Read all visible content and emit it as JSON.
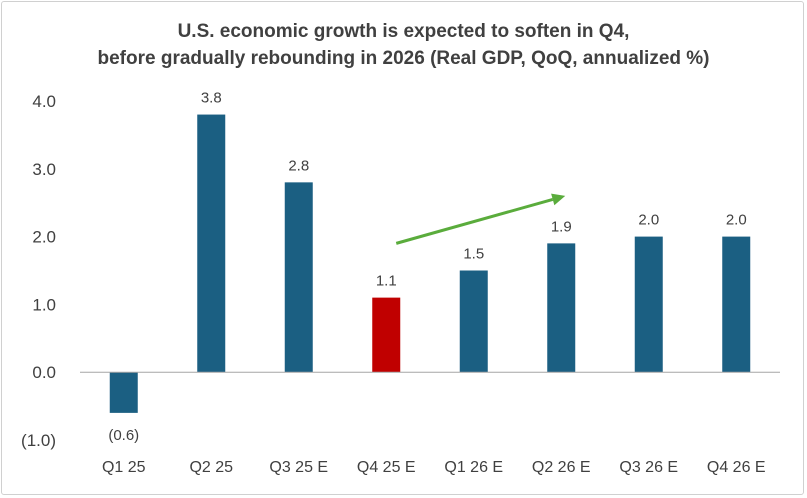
{
  "chart_data": {
    "type": "bar",
    "title_lines": [
      "U.S. economic growth is expected to soften in Q4,",
      "before gradually rebounding in 2026 (Real GDP, QoQ, annualized %)"
    ],
    "categories": [
      "Q1 25",
      "Q2 25",
      "Q3 25 E",
      "Q4 25 E",
      "Q1 26 E",
      "Q2 26 E",
      "Q3 26 E",
      "Q4 26 E"
    ],
    "values": [
      -0.6,
      3.8,
      2.8,
      1.1,
      1.5,
      1.9,
      2.0,
      2.0
    ],
    "data_labels": [
      "(0.6)",
      "3.8",
      "2.8",
      "1.1",
      "1.5",
      "1.9",
      "2.0",
      "2.0"
    ],
    "y_ticks": [
      4.0,
      3.0,
      2.0,
      1.0,
      0.0,
      -1.0
    ],
    "y_tick_labels": [
      "4.0",
      "3.0",
      "2.0",
      "1.0",
      "0.0",
      "(1.0)"
    ],
    "ylim": [
      -1.0,
      4.0
    ],
    "xlabel": "",
    "ylabel": "",
    "grid": false,
    "legend": "none",
    "colors": {
      "bar": "#1b5f82",
      "highlight_bar": "#c00000",
      "highlight_index": 3,
      "trend_arrow": "#5aac3c",
      "text": "#404040",
      "axis": "#a6a6a6"
    },
    "annotations": [
      {
        "type": "trend-arrow",
        "from": [
          "Q4 25 E",
          1.9
        ],
        "to": [
          "Q2 26 E",
          2.6
        ]
      }
    ]
  }
}
